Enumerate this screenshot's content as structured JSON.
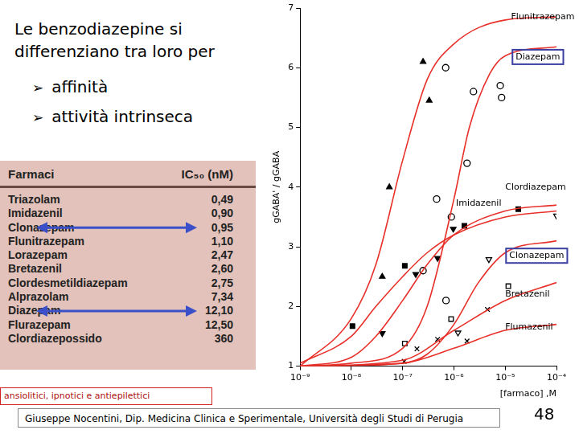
{
  "slide": {
    "title": "Le benzodiazepine si differenziano tra loro per",
    "bullets": [
      "affinità",
      "attività intrinseca"
    ],
    "table": {
      "header": [
        "Farmaci",
        "IC₅₀ (nM)"
      ],
      "rows": [
        [
          "Triazolam",
          "0,49"
        ],
        [
          "Imidazenil",
          "0,90"
        ],
        [
          "Clonazepam",
          "0,95"
        ],
        [
          "Flunitrazepam",
          "1,10"
        ],
        [
          "Lorazepam",
          "2,47"
        ],
        [
          "Bretazenil",
          "2,60"
        ],
        [
          "Clordesmetildiazepam",
          "2,75"
        ],
        [
          "Alprazolam",
          "7,34"
        ],
        [
          "Diazepam",
          "12,10"
        ],
        [
          "Flurazepam",
          "12,50"
        ],
        [
          "Clordiazepossido",
          "360"
        ]
      ]
    },
    "highlight": [
      "Clonazepam",
      "Diazepam"
    ],
    "note": "ansiolitici, ipnotici e antiepilettici",
    "footer": "Giuseppe Nocentini, Dip. Medicina Clinica e Sperimentale, Università degli Studi di Perugia",
    "page": "48"
  },
  "chart_data": {
    "type": "line",
    "x_label": "[farmaco] ,M",
    "y_label": "gGABA' / gGABA",
    "log": "x",
    "grid": false,
    "color": "#e8302a",
    "xlim": [
      1e-09,
      0.0001
    ],
    "xticks": [
      {
        "value": 1e-09,
        "label": "10⁻⁹"
      },
      {
        "value": 1e-08,
        "label": "10⁻⁸"
      },
      {
        "value": 1e-07,
        "label": "10⁻⁷"
      },
      {
        "value": 1e-06,
        "label": "10⁻⁶"
      },
      {
        "value": 1e-05,
        "label": "10⁻⁵"
      },
      {
        "value": 0.0001,
        "label": "10⁻⁴"
      }
    ],
    "ylim": [
      1,
      7
    ],
    "yticks": [
      1,
      2,
      3,
      4,
      5,
      6,
      7
    ],
    "series": [
      {
        "name": "Flunitrazepam",
        "color": "#000000",
        "marker": "triangle",
        "label_x": 1.3e-05,
        "label_y": 6.85,
        "points": {
          "x": [
            4e-08,
            5.5e-08,
            2.5e-07,
            3.3e-07
          ],
          "y": [
            2.5,
            4.0,
            6.1,
            5.45
          ]
        },
        "curve": {
          "x": [
            1e-09,
            1e-08,
            3e-08,
            1e-07,
            3e-07,
            1e-06,
            1e-05,
            0.0001
          ],
          "y": [
            1.0,
            1.8,
            2.7,
            4.45,
            5.8,
            6.4,
            6.8,
            6.85
          ]
        }
      },
      {
        "name": "Diazepam",
        "color": "#000000",
        "marker": "circle_open",
        "label_x": 1.6e-05,
        "label_y": 6.18,
        "points": {
          "x": [
            2.5e-07,
            4.6e-07,
            7e-07,
            8.9e-07,
            1.8e-06,
            6.9e-07,
            2.4e-06,
            8e-06,
            8.5e-06
          ],
          "y": [
            2.6,
            3.8,
            2.1,
            3.5,
            4.4,
            6.0,
            5.6,
            5.7,
            5.5
          ]
        },
        "curve": {
          "x": [
            1e-09,
            1e-08,
            1e-07,
            3e-07,
            1e-06,
            2e-06,
            5e-06,
            1e-05,
            0.0001
          ],
          "y": [
            1.0,
            1.05,
            1.3,
            2.0,
            3.8,
            5.0,
            5.9,
            6.2,
            6.35
          ]
        }
      },
      {
        "name": "Clordiazepam",
        "color": "#000000",
        "marker": "triangle_down",
        "label_x": 1e-05,
        "label_y": 4.0,
        "points": {
          "x": [
            4e-08,
            1.8e-07,
            4.8e-07,
            9.7e-07
          ],
          "y": [
            1.55,
            2.54,
            2.81,
            3.3
          ]
        },
        "curve": {
          "x": [
            1e-09,
            1e-08,
            3e-08,
            1e-07,
            3e-07,
            1e-06,
            1e-05,
            0.0001
          ],
          "y": [
            1.0,
            1.15,
            1.5,
            2.1,
            2.7,
            3.2,
            3.6,
            3.7
          ]
        }
      },
      {
        "name": "Imidazenil",
        "color": "#000000",
        "marker": "square",
        "label_x": 1.1e-06,
        "label_y": 3.73,
        "points": {
          "x": [
            1.05e-08,
            1.1e-07,
            1.6e-06,
            1.8e-05
          ],
          "y": [
            1.67,
            2.68,
            3.35,
            3.63
          ]
        },
        "curve": {
          "x": [
            1e-09,
            1e-08,
            3e-08,
            1e-07,
            3e-07,
            1e-06,
            1e-05,
            0.0001
          ],
          "y": [
            1.05,
            1.5,
            2.0,
            2.5,
            2.9,
            3.2,
            3.5,
            3.6
          ]
        }
      },
      {
        "name": "Clonazepam",
        "color": "#000000",
        "marker": "triangle_down_open",
        "label_x": 1.2e-05,
        "label_y": 2.85,
        "points": {
          "x": [
            1.2e-06,
            4.8e-06,
            0.0001
          ],
          "y": [
            1.56,
            2.79,
            3.52
          ]
        },
        "curve": {
          "x": [
            1e-09,
            1e-07,
            3e-07,
            1e-06,
            3e-06,
            1e-05,
            0.0001
          ],
          "y": [
            1.0,
            1.05,
            1.2,
            1.7,
            2.4,
            2.9,
            3.1
          ]
        }
      },
      {
        "name": "Bretazenil",
        "color": "#000000",
        "marker": "square_open",
        "label_x": 1e-05,
        "label_y": 2.2,
        "points": {
          "x": [
            1.1e-07,
            8.8e-07,
            1.15e-05
          ],
          "y": [
            1.38,
            1.79,
            2.34
          ]
        },
        "curve": {
          "x": [
            1e-09,
            1e-07,
            1e-06,
            1e-05,
            0.0001
          ],
          "y": [
            1.0,
            1.1,
            1.6,
            2.1,
            2.4
          ]
        }
      },
      {
        "name": "Flumazenil",
        "color": "#000000",
        "marker": "x",
        "label_x": 1e-05,
        "label_y": 1.65,
        "points": {
          "x": [
            1.07e-07,
            1.9e-07,
            4.8e-07,
            1.8e-06,
            4.5e-06
          ],
          "y": [
            1.08,
            1.29,
            1.45,
            1.42,
            1.95
          ]
        },
        "curve": {
          "x": [
            1e-09,
            1e-07,
            1e-06,
            1e-05,
            0.0001
          ],
          "y": [
            1.0,
            1.05,
            1.3,
            1.6,
            1.7
          ]
        }
      }
    ]
  }
}
